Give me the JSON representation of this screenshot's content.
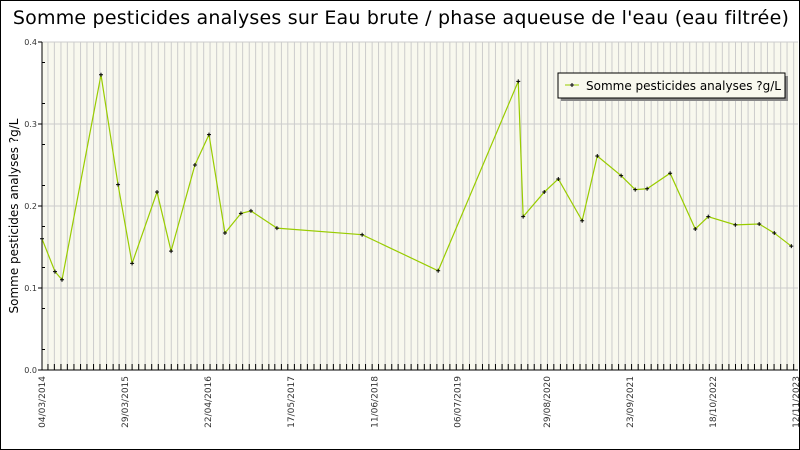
{
  "chart_data": {
    "type": "line",
    "title": "Somme pesticides analyses sur Eau brute / phase aqueuse de l'eau (eau filtrée)",
    "xlabel": "",
    "ylabel": "Somme pesticides analyses ?g/L",
    "ylim": [
      0,
      0.4
    ],
    "yticks": [
      "0.0",
      "0.1",
      "0.2",
      "0.3",
      "0.4"
    ],
    "xlim": [
      "2014-03-04",
      "2023-11-12"
    ],
    "xtick_labels": [
      "04/03/2014",
      "29/03/2015",
      "22/04/2016",
      "17/05/2017",
      "11/06/2018",
      "06/07/2019",
      "29/08/2020",
      "23/09/2021",
      "18/10/2022",
      "12/11/2023"
    ],
    "grid": true,
    "legend_position": "top-right",
    "line_color": "#99cc00",
    "marker_color": "#000000",
    "plot_background": "#f8f8ee",
    "series": [
      {
        "name": "Somme pesticides analyses ?g/L",
        "x": [
          "2014-03-04",
          "2014-05-04",
          "2014-06-06",
          "2014-12-06",
          "2015-02-24",
          "2015-05-01",
          "2015-08-26",
          "2015-10-31",
          "2016-02-20",
          "2016-04-26",
          "2016-07-10",
          "2016-09-23",
          "2016-11-09",
          "2017-03-11",
          "2018-04-15",
          "2019-04-07",
          "2020-04-17",
          "2020-05-10",
          "2020-08-17",
          "2020-10-22",
          "2021-02-11",
          "2021-04-23",
          "2021-08-13",
          "2021-10-18",
          "2021-12-13",
          "2022-03-31",
          "2022-07-27",
          "2022-09-26",
          "2023-01-31",
          "2023-05-23",
          "2023-08-02",
          "2023-10-21"
        ],
        "y": [
          0.16,
          0.12,
          0.11,
          0.36,
          0.226,
          0.13,
          0.217,
          0.145,
          0.25,
          0.287,
          0.167,
          0.191,
          0.194,
          0.173,
          0.165,
          0.121,
          0.352,
          0.187,
          0.217,
          0.233,
          0.182,
          0.261,
          0.237,
          0.22,
          0.221,
          0.24,
          0.172,
          0.187,
          0.177,
          0.178,
          0.167,
          0.151
        ]
      }
    ]
  }
}
